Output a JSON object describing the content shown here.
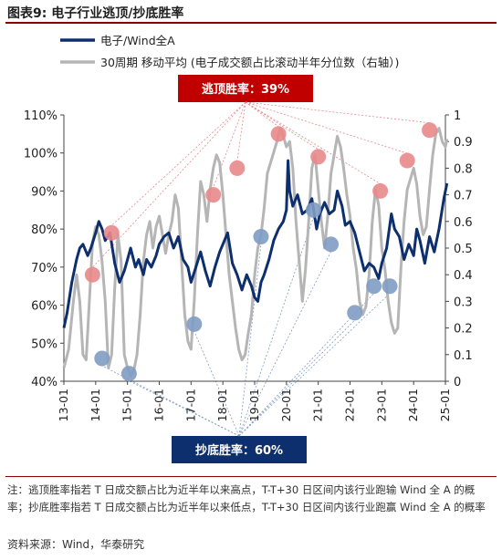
{
  "figure": {
    "title": "图表9:  电子行业逃顶/抄底胜率",
    "note": "注：逃顶胜率指若 T 日成交额占比为近半年以来高点，T-T+30 日区间内该行业跑输 Wind 全 A 的概率；抄底胜率指若 T 日成交额占比为近半年以来低点，T-T+30 日区间内该行业跑赢 Wind 全 A 的概率",
    "source": "资料来源：Wind，华泰研究"
  },
  "colors": {
    "navy": "#0d2f6e",
    "gray": "#b5b5b5",
    "red_box": "#c00000",
    "blue_box": "#0d2f6e",
    "pink": "#e8888a",
    "light_blue": "#7f9cc4",
    "rule": "#8b0000"
  },
  "chart_data": {
    "type": "line",
    "title": "",
    "legend": {
      "position": "top-left",
      "entries": [
        "电子/Wind全A",
        "30周期 移动平均 (电子成交额占比滚动半年分位数（右轴）)"
      ]
    },
    "x_tick_labels": [
      "13-01",
      "14-01",
      "15-01",
      "16-01",
      "17-01",
      "18-01",
      "19-01",
      "20-01",
      "21-01",
      "22-01",
      "23-01",
      "24-01",
      "25-01"
    ],
    "left_axis": {
      "ylim": [
        0.4,
        1.1
      ],
      "ticks": [
        0.4,
        0.5,
        0.6,
        0.7,
        0.8,
        0.9,
        1.0,
        1.1
      ],
      "tick_labels": [
        "40%",
        "50%",
        "60%",
        "70%",
        "80%",
        "90%",
        "100%",
        "110%"
      ]
    },
    "right_axis": {
      "ylim": [
        0,
        1
      ],
      "ticks": [
        0,
        0.1,
        0.2,
        0.3,
        0.4,
        0.5,
        0.6,
        0.7,
        0.8,
        0.9,
        1
      ],
      "tick_labels": [
        "0",
        "0.1",
        "0.2",
        "0.3",
        "0.4",
        "0.5",
        "0.6",
        "0.7",
        "0.8",
        "0.9",
        "1"
      ]
    },
    "series": [
      {
        "name": "电子/Wind全A",
        "axis": "left",
        "x": [
          2013.0,
          2013.1,
          2013.25,
          2013.4,
          2013.5,
          2013.6,
          2013.75,
          2013.85,
          2014.0,
          2014.1,
          2014.2,
          2014.3,
          2014.45,
          2014.6,
          2014.75,
          2014.9,
          2015.0,
          2015.1,
          2015.25,
          2015.35,
          2015.5,
          2015.6,
          2015.75,
          2015.9,
          2016.0,
          2016.15,
          2016.3,
          2016.45,
          2016.6,
          2016.75,
          2016.9,
          2017.0,
          2017.15,
          2017.3,
          2017.45,
          2017.6,
          2017.75,
          2017.9,
          2018.0,
          2018.15,
          2018.3,
          2018.45,
          2018.6,
          2018.75,
          2018.9,
          2019.0,
          2019.1,
          2019.2,
          2019.3,
          2019.45,
          2019.6,
          2019.75,
          2019.9,
          2020.0,
          2020.05,
          2020.1,
          2020.2,
          2020.35,
          2020.5,
          2020.65,
          2020.8,
          2020.95,
          2021.05,
          2021.2,
          2021.35,
          2021.5,
          2021.6,
          2021.75,
          2021.85,
          2022.0,
          2022.15,
          2022.3,
          2022.45,
          2022.6,
          2022.75,
          2022.9,
          2023.0,
          2023.15,
          2023.3,
          2023.4,
          2023.55,
          2023.7,
          2023.85,
          2024.0,
          2024.1,
          2024.2,
          2024.35,
          2024.5,
          2024.65,
          2024.8,
          2024.95,
          2025.05
        ],
        "values": [
          0.54,
          0.58,
          0.66,
          0.72,
          0.75,
          0.76,
          0.73,
          0.75,
          0.79,
          0.82,
          0.8,
          0.77,
          0.79,
          0.71,
          0.66,
          0.69,
          0.72,
          0.75,
          0.7,
          0.72,
          0.68,
          0.72,
          0.7,
          0.73,
          0.76,
          0.78,
          0.79,
          0.75,
          0.78,
          0.72,
          0.7,
          0.66,
          0.7,
          0.74,
          0.69,
          0.65,
          0.7,
          0.74,
          0.76,
          0.79,
          0.71,
          0.68,
          0.64,
          0.68,
          0.65,
          0.62,
          0.61,
          0.66,
          0.68,
          0.72,
          0.77,
          0.8,
          0.82,
          0.85,
          0.98,
          0.9,
          0.86,
          0.89,
          0.84,
          0.85,
          0.88,
          0.8,
          0.84,
          0.87,
          0.84,
          0.85,
          0.9,
          0.86,
          0.81,
          0.82,
          0.79,
          0.74,
          0.69,
          0.71,
          0.7,
          0.67,
          0.71,
          0.75,
          0.84,
          0.8,
          0.78,
          0.72,
          0.76,
          0.73,
          0.8,
          0.77,
          0.71,
          0.78,
          0.74,
          0.8,
          0.88,
          0.92
        ]
      },
      {
        "name": "30周期 移动平均 (电子成交额占比滚动半年分位数（右轴）)",
        "axis": "right",
        "x": [
          2013.0,
          2013.15,
          2013.3,
          2013.4,
          2013.5,
          2013.6,
          2013.7,
          2013.8,
          2013.9,
          2014.0,
          2014.1,
          2014.2,
          2014.3,
          2014.4,
          2014.5,
          2014.6,
          2014.7,
          2014.8,
          2014.9,
          2015.0,
          2015.1,
          2015.2,
          2015.3,
          2015.4,
          2015.5,
          2015.6,
          2015.7,
          2015.8,
          2015.9,
          2016.0,
          2016.1,
          2016.2,
          2016.3,
          2016.4,
          2016.5,
          2016.6,
          2016.7,
          2016.8,
          2016.9,
          2017.0,
          2017.1,
          2017.2,
          2017.3,
          2017.4,
          2017.5,
          2017.6,
          2017.7,
          2017.8,
          2017.9,
          2018.0,
          2018.1,
          2018.2,
          2018.3,
          2018.4,
          2018.5,
          2018.6,
          2018.7,
          2018.8,
          2018.9,
          2019.0,
          2019.1,
          2019.2,
          2019.3,
          2019.4,
          2019.5,
          2019.6,
          2019.7,
          2019.8,
          2019.9,
          2020.0,
          2020.1,
          2020.2,
          2020.3,
          2020.4,
          2020.5,
          2020.6,
          2020.7,
          2020.8,
          2020.9,
          2021.0,
          2021.1,
          2021.2,
          2021.3,
          2021.4,
          2021.5,
          2021.6,
          2021.7,
          2021.8,
          2021.9,
          2022.0,
          2022.1,
          2022.2,
          2022.3,
          2022.4,
          2022.5,
          2022.6,
          2022.7,
          2022.8,
          2022.9,
          2023.0,
          2023.1,
          2023.2,
          2023.3,
          2023.4,
          2023.5,
          2023.6,
          2023.7,
          2023.8,
          2023.9,
          2024.0,
          2024.1,
          2024.2,
          2024.3,
          2024.4,
          2024.5,
          2024.6,
          2024.7,
          2024.8,
          2024.9,
          2025.0,
          2025.05
        ],
        "values": [
          0.05,
          0.12,
          0.3,
          0.4,
          0.3,
          0.1,
          0.08,
          0.3,
          0.52,
          0.58,
          0.55,
          0.45,
          0.3,
          0.05,
          0.1,
          0.35,
          0.55,
          0.45,
          0.1,
          0.05,
          0.02,
          0.04,
          0.1,
          0.25,
          0.45,
          0.55,
          0.6,
          0.5,
          0.58,
          0.62,
          0.55,
          0.48,
          0.55,
          0.6,
          0.7,
          0.65,
          0.45,
          0.25,
          0.15,
          0.12,
          0.3,
          0.55,
          0.75,
          0.7,
          0.6,
          0.72,
          0.8,
          0.85,
          0.82,
          0.7,
          0.55,
          0.4,
          0.3,
          0.2,
          0.12,
          0.08,
          0.1,
          0.18,
          0.25,
          0.4,
          0.5,
          0.55,
          0.65,
          0.78,
          0.82,
          0.86,
          0.9,
          0.95,
          0.92,
          0.88,
          0.9,
          0.8,
          0.6,
          0.45,
          0.3,
          0.42,
          0.6,
          0.8,
          0.85,
          0.72,
          0.6,
          0.5,
          0.62,
          0.78,
          0.85,
          0.92,
          0.88,
          0.8,
          0.7,
          0.62,
          0.5,
          0.42,
          0.3,
          0.25,
          0.28,
          0.4,
          0.6,
          0.72,
          0.66,
          0.5,
          0.42,
          0.3,
          0.22,
          0.18,
          0.2,
          0.42,
          0.6,
          0.72,
          0.76,
          0.8,
          0.74,
          0.62,
          0.55,
          0.58,
          0.72,
          0.85,
          0.93,
          0.95,
          0.9,
          0.88,
          0.91
        ]
      }
    ],
    "markers": {
      "top": [
        {
          "x": 2013.9,
          "y": 0.68,
          "axis": "left"
        },
        {
          "x": 2014.5,
          "y": 0.79,
          "axis": "left"
        },
        {
          "x": 2017.7,
          "y": 0.89,
          "axis": "left"
        },
        {
          "x": 2018.45,
          "y": 0.96,
          "axis": "left"
        },
        {
          "x": 2019.75,
          "y": 1.05,
          "axis": "left"
        },
        {
          "x": 2021.0,
          "y": 0.99,
          "axis": "left"
        },
        {
          "x": 2022.95,
          "y": 0.9,
          "axis": "left"
        },
        {
          "x": 2023.8,
          "y": 0.98,
          "axis": "left"
        },
        {
          "x": 2024.5,
          "y": 1.06,
          "axis": "left"
        }
      ],
      "bottom": [
        {
          "x": 2014.2,
          "y": 0.46,
          "axis": "left"
        },
        {
          "x": 2015.05,
          "y": 0.42,
          "axis": "left"
        },
        {
          "x": 2017.1,
          "y": 0.55,
          "axis": "left"
        },
        {
          "x": 2019.2,
          "y": 0.78,
          "axis": "left"
        },
        {
          "x": 2020.85,
          "y": 0.85,
          "axis": "left"
        },
        {
          "x": 2021.4,
          "y": 0.76,
          "axis": "left"
        },
        {
          "x": 2022.15,
          "y": 0.58,
          "axis": "left"
        },
        {
          "x": 2022.75,
          "y": 0.65,
          "axis": "left"
        },
        {
          "x": 2023.25,
          "y": 0.65,
          "axis": "left"
        }
      ]
    },
    "annotations": {
      "top_label": "逃顶胜率：39%",
      "bottom_label": "抄底胜率：60%"
    }
  }
}
